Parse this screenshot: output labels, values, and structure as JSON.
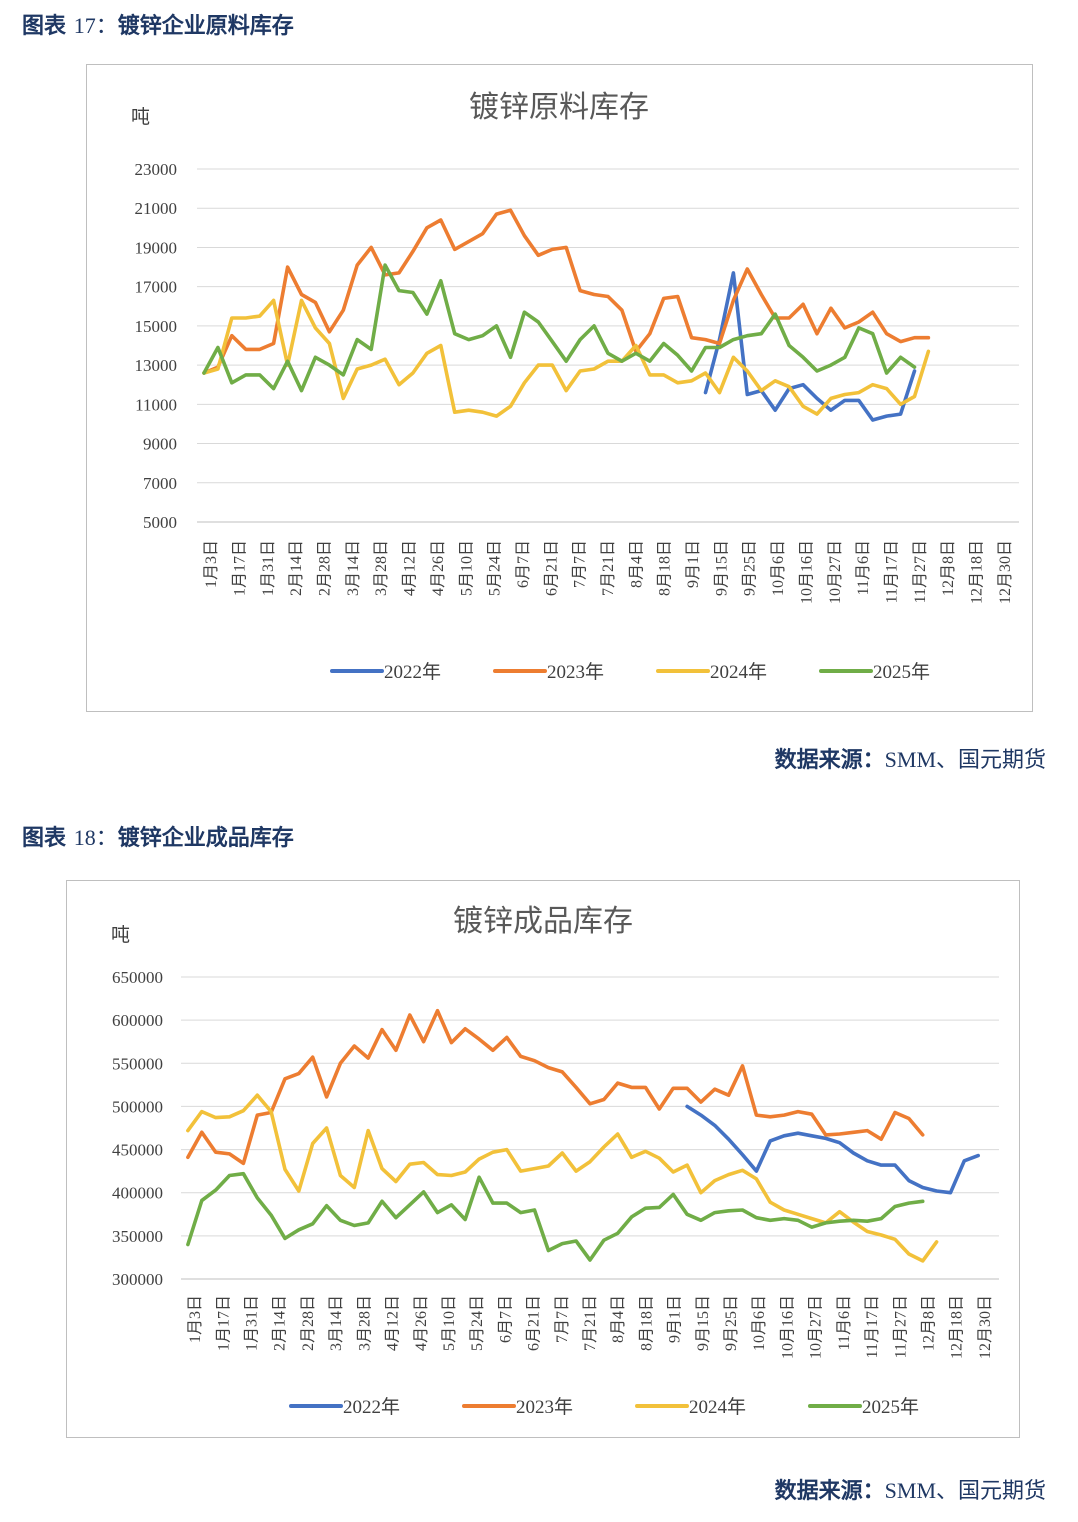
{
  "figures": [
    {
      "caption_prefix": "图表",
      "caption_num": "17：",
      "caption_title": "镀锌企业原料库存",
      "source_label": "数据来源：",
      "source_text": "SMM、国元期货"
    },
    {
      "caption_prefix": "图表",
      "caption_num": "18：",
      "caption_title": "镀锌企业成品库存",
      "source_label": "数据来源：",
      "source_text": "SMM、国元期货"
    }
  ],
  "colors": {
    "2022": "#4472c4",
    "2023": "#ed7d31",
    "2024": "#f2c13a",
    "2025": "#70ad47",
    "grid": "#d9d9d9",
    "axis": "#bfbfbf"
  },
  "chart_data": [
    {
      "type": "line",
      "title": "镀锌原料库存",
      "ylabel": "吨",
      "ylim": [
        5000,
        23000
      ],
      "yticks": [
        5000,
        7000,
        9000,
        11000,
        13000,
        15000,
        17000,
        19000,
        21000,
        23000
      ],
      "tick_labels": [
        "1月3日",
        "1月17日",
        "1月31日",
        "2月14日",
        "2月28日",
        "3月14日",
        "3月28日",
        "4月12日",
        "4月26日",
        "5月10日",
        "5月24日",
        "6月7日",
        "6月21日",
        "7月7日",
        "7月21日",
        "8月4日",
        "8月18日",
        "9月1日",
        "9月15日",
        "9月25日",
        "10月6日",
        "10月16日",
        "10月27日",
        "11月6日",
        "11月17日",
        "11月27日",
        "12月8日",
        "12月18日",
        "12月30日"
      ],
      "n_points": 59,
      "series": [
        {
          "name": "2022年",
          "key": "2022",
          "start": 36,
          "values": [
            11600,
            14300,
            17700,
            11500,
            11700,
            10700,
            11800,
            12000,
            11300,
            10700,
            11200,
            11200,
            10200,
            10400,
            10500,
            12700
          ]
        },
        {
          "name": "2023年",
          "key": "2023",
          "start": 0,
          "values": [
            12600,
            12900,
            14500,
            13800,
            13800,
            14100,
            18000,
            16600,
            16200,
            14700,
            15800,
            18100,
            19000,
            17600,
            17700,
            18800,
            20000,
            20400,
            18900,
            19300,
            19700,
            20700,
            20900,
            19600,
            18600,
            18900,
            19000,
            16800,
            16600,
            16500,
            15800,
            13700,
            14600,
            16400,
            16500,
            14400,
            14300,
            14100,
            16300,
            17900,
            16600,
            15400,
            15400,
            16100,
            14600,
            15900,
            14900,
            15200,
            15700,
            14600,
            14200,
            14400,
            14400
          ]
        },
        {
          "name": "2024年",
          "key": "2024",
          "start": 0,
          "values": [
            12600,
            12800,
            15400,
            15400,
            15500,
            16300,
            13000,
            16300,
            14900,
            14100,
            11300,
            12800,
            13000,
            13300,
            12000,
            12600,
            13600,
            14000,
            10600,
            10700,
            10600,
            10400,
            10900,
            12100,
            13000,
            13000,
            11700,
            12700,
            12800,
            13200,
            13200,
            14000,
            12500,
            12500,
            12100,
            12200,
            12600,
            11600,
            13400,
            12700,
            11700,
            12200,
            11900,
            10900,
            10500,
            11300,
            11500,
            11600,
            12000,
            11800,
            11000,
            11400,
            13700
          ]
        },
        {
          "name": "2025年",
          "key": "2025",
          "start": 0,
          "values": [
            12600,
            13900,
            12100,
            12500,
            12500,
            11800,
            13200,
            11700,
            13400,
            13000,
            12500,
            14300,
            13800,
            18100,
            16800,
            16700,
            15600,
            17300,
            14600,
            14300,
            14500,
            15000,
            13400,
            15700,
            15200,
            14200,
            13200,
            14300,
            15000,
            13600,
            13200,
            13600,
            13200,
            14100,
            13500,
            12700,
            13900,
            13900,
            14300,
            14500,
            14600,
            15600,
            14000,
            13400,
            12700,
            13000,
            13400,
            14900,
            14600,
            12600,
            13400,
            12900
          ]
        }
      ]
    },
    {
      "type": "line",
      "title": "镀锌成品库存",
      "ylabel": "吨",
      "ylim": [
        300000,
        650000
      ],
      "yticks": [
        300000,
        350000,
        400000,
        450000,
        500000,
        550000,
        600000,
        650000
      ],
      "tick_labels": [
        "1月3日",
        "1月17日",
        "1月31日",
        "2月14日",
        "2月28日",
        "3月14日",
        "3月28日",
        "4月12日",
        "4月26日",
        "5月10日",
        "5月24日",
        "6月7日",
        "6月21日",
        "7月7日",
        "7月21日",
        "8月4日",
        "8月18日",
        "9月1日",
        "9月15日",
        "9月25日",
        "10月6日",
        "10月16日",
        "10月27日",
        "11月6日",
        "11月17日",
        "11月27日",
        "12月8日",
        "12月18日",
        "12月30日"
      ],
      "n_points": 59,
      "series": [
        {
          "name": "2022年",
          "key": "2022",
          "start": 36,
          "values": [
            500000,
            490000,
            478000,
            462000,
            444000,
            425000,
            460000,
            466000,
            469000,
            466000,
            463000,
            458000,
            446000,
            437000,
            432000,
            432000,
            414000,
            406000,
            402000,
            400000,
            437000,
            443000
          ]
        },
        {
          "name": "2023年",
          "key": "2023",
          "start": 0,
          "values": [
            441000,
            470000,
            447000,
            445000,
            434000,
            490000,
            493000,
            532000,
            538000,
            557000,
            511000,
            550000,
            570000,
            556000,
            589000,
            565000,
            606000,
            575000,
            611000,
            574000,
            590000,
            578000,
            565000,
            580000,
            558000,
            553000,
            545000,
            540000,
            522000,
            503000,
            508000,
            527000,
            522000,
            522000,
            497000,
            521000,
            521000,
            505000,
            520000,
            513000,
            547000,
            490000,
            488000,
            490000,
            494000,
            491000,
            467000,
            468000,
            470000,
            472000,
            462000,
            493000,
            486000,
            467000
          ]
        },
        {
          "name": "2024年",
          "key": "2024",
          "start": 0,
          "values": [
            472000,
            494000,
            487000,
            488000,
            495000,
            513000,
            494000,
            427000,
            402000,
            457000,
            475000,
            420000,
            406000,
            472000,
            428000,
            413000,
            433000,
            435000,
            421000,
            420000,
            424000,
            439000,
            447000,
            450000,
            425000,
            428000,
            431000,
            446000,
            425000,
            436000,
            453000,
            468000,
            441000,
            448000,
            440000,
            424000,
            432000,
            400000,
            414000,
            421000,
            426000,
            416000,
            389000,
            380000,
            375000,
            370000,
            365000,
            378000,
            366000,
            355000,
            351000,
            346000,
            329000,
            321000,
            343000
          ]
        },
        {
          "name": "2025年",
          "key": "2025",
          "start": 0,
          "values": [
            340000,
            391000,
            403000,
            420000,
            422000,
            394000,
            374000,
            347000,
            357000,
            364000,
            385000,
            368000,
            362000,
            365000,
            390000,
            371000,
            386000,
            401000,
            377000,
            386000,
            369000,
            418000,
            388000,
            388000,
            377000,
            380000,
            333000,
            341000,
            344000,
            322000,
            345000,
            353000,
            372000,
            382000,
            383000,
            398000,
            375000,
            368000,
            377000,
            379000,
            380000,
            371000,
            368000,
            370000,
            368000,
            360000,
            365000,
            367000,
            368000,
            367000,
            370000,
            384000,
            388000,
            390000
          ]
        }
      ]
    }
  ]
}
